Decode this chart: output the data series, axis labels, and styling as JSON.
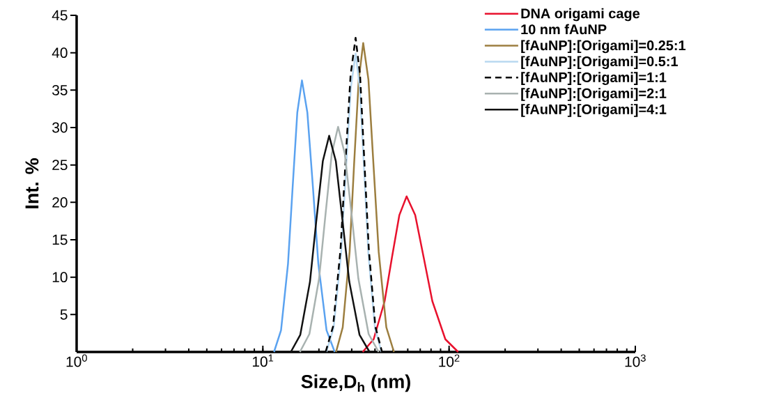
{
  "chart_data": {
    "type": "line",
    "xlabel": "Size,D$_{h}$ (nm)",
    "ylabel": "Int. %",
    "log": "x",
    "grid": false,
    "legend": "top right",
    "marker": "none",
    "xlim": [
      1,
      1000
    ],
    "ylim": [
      0,
      45
    ],
    "xticks": [
      {
        "value": 1,
        "label": "10$^{0}$"
      },
      {
        "value": 10,
        "label": "10$^{1}$"
      },
      {
        "value": 100,
        "label": "10$^{2}$"
      },
      {
        "value": 1000,
        "label": "10$^{3}$"
      }
    ],
    "yticks": [
      5,
      10,
      15,
      20,
      25,
      30,
      35,
      40,
      45
    ],
    "series": [
      {
        "name": "DNA origami cage",
        "color": "#e8112d",
        "line_style": "solid",
        "x": [
          34.36,
          39.36,
          45.08,
          49.32,
          54.08,
          59.16,
          65.77,
          73.11,
          81.28,
          95.5,
          111.9
        ],
        "values": [
          0,
          1.7,
          6.8,
          12.6,
          18.3,
          20.8,
          18.3,
          12.6,
          6.8,
          1.7,
          0
        ]
      },
      {
        "name": "10 nm fAuNP",
        "color": "#5aa2f0",
        "line_style": "solid",
        "x": [
          11.48,
          12.52,
          13.65,
          14.45,
          15.31,
          16.22,
          17.34,
          18.58,
          19.86,
          21.98,
          24.32
        ],
        "values": [
          0,
          2.9,
          11.8,
          22.0,
          32.0,
          36.3,
          32.0,
          22.0,
          11.8,
          2.9,
          0
        ]
      },
      {
        "name": "[fAuNP]:[Origami]=0.25:1",
        "color": "#9c7e3f",
        "line_style": "solid",
        "x": [
          24.72,
          26.85,
          29.24,
          30.9,
          32.73,
          34.59,
          36.9,
          39.26,
          41.88,
          46.03,
          50.58
        ],
        "values": [
          0,
          3.3,
          13.4,
          25.1,
          36.4,
          41.3,
          36.4,
          25.1,
          13.4,
          3.3,
          0
        ]
      },
      {
        "name": "[fAuNP]:[Origami]=0.5:1",
        "color": "#b8d8f0",
        "line_style": "solid",
        "x": [
          21.93,
          23.99,
          26.3,
          27.93,
          29.65,
          31.48,
          33.19,
          34.99,
          36.9,
          39.99,
          43.35
        ],
        "values": [
          0,
          3.2,
          13.0,
          24.2,
          35.2,
          39.9,
          35.2,
          24.2,
          13.0,
          3.2,
          0
        ]
      },
      {
        "name": "[fAuNP]:[Origami]=1:1",
        "color": "#000000",
        "line_style": "dashed",
        "x": [
          21.73,
          23.82,
          26.12,
          27.8,
          29.58,
          31.48,
          33.27,
          35.08,
          37.07,
          40.18,
          43.65
        ],
        "values": [
          0,
          3.4,
          13.7,
          25.5,
          37.0,
          42.0,
          37.0,
          25.5,
          13.7,
          3.4,
          0
        ]
      },
      {
        "name": "[fAuNP]:[Origami]=2:1",
        "color": "#a8b2b0",
        "line_style": "solid",
        "x": [
          15.81,
          17.78,
          20.04,
          21.68,
          23.44,
          25.35,
          27.54,
          29.99,
          32.58,
          36.98,
          41.88
        ],
        "values": [
          0,
          2.4,
          9.8,
          18.3,
          26.5,
          30.1,
          26.5,
          18.3,
          9.8,
          2.4,
          0
        ]
      },
      {
        "name": "[fAuNP]:[Origami]=4:1",
        "color": "#111111",
        "line_style": "solid",
        "x": [
          14.13,
          15.89,
          17.91,
          19.36,
          20.99,
          22.7,
          24.66,
          26.79,
          29.11,
          33.04,
          37.41
        ],
        "values": [
          0,
          2.3,
          9.4,
          17.5,
          25.5,
          28.9,
          25.5,
          17.5,
          9.4,
          2.3,
          0
        ]
      }
    ]
  }
}
